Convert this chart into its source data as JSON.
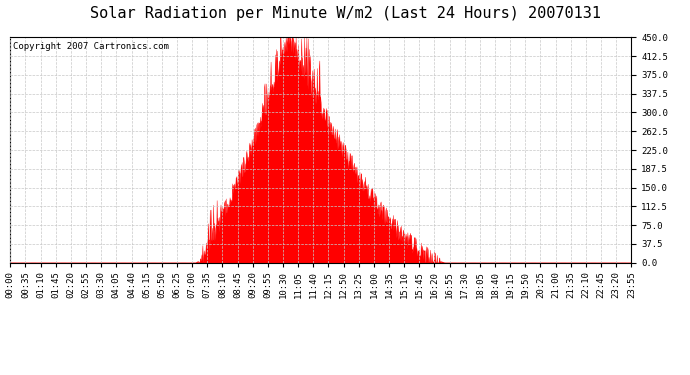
{
  "title": "Solar Radiation per Minute W/m2 (Last 24 Hours) 20070131",
  "copyright_text": "Copyright 2007 Cartronics.com",
  "fill_color": "#ff0000",
  "background_color": "#ffffff",
  "plot_bg_color": "#ffffff",
  "dashed_line_color": "#c8c8c8",
  "red_baseline_color": "#ff0000",
  "ylim": [
    0.0,
    450.0
  ],
  "yticks": [
    0.0,
    37.5,
    75.0,
    112.5,
    150.0,
    187.5,
    225.0,
    262.5,
    300.0,
    337.5,
    375.0,
    412.5,
    450.0
  ],
  "xtick_labels": [
    "00:00",
    "00:35",
    "01:10",
    "01:45",
    "02:20",
    "02:55",
    "03:30",
    "04:05",
    "04:40",
    "05:15",
    "05:50",
    "06:25",
    "07:00",
    "07:35",
    "08:10",
    "08:45",
    "09:20",
    "09:55",
    "10:30",
    "11:05",
    "11:40",
    "12:15",
    "12:50",
    "13:25",
    "14:00",
    "14:35",
    "15:10",
    "15:45",
    "16:20",
    "16:55",
    "17:30",
    "18:05",
    "18:40",
    "19:15",
    "19:50",
    "20:25",
    "21:00",
    "21:35",
    "22:10",
    "22:45",
    "23:20",
    "23:55"
  ],
  "num_points": 1440,
  "sunrise_minute": 425,
  "sunset_minute": 1005,
  "peak_minute": 645,
  "peak_value": 450.0,
  "title_fontsize": 11,
  "tick_fontsize": 6.5,
  "copyright_fontsize": 6.5
}
